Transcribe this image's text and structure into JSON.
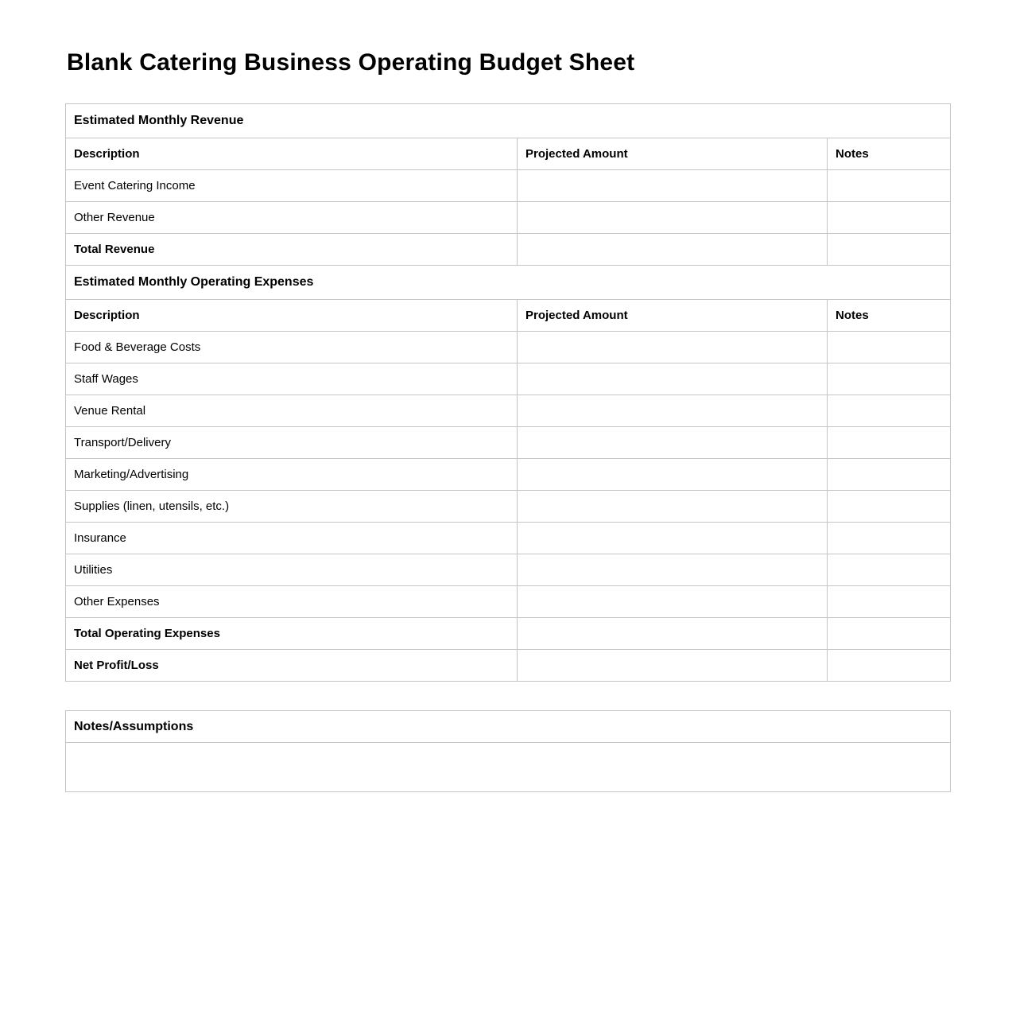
{
  "page": {
    "title": "Blank Catering Business Operating Budget Sheet"
  },
  "budget_table": {
    "sections": [
      {
        "header": "Estimated Monthly Revenue",
        "columns": [
          "Description",
          "Projected Amount",
          "Notes"
        ],
        "rows": [
          {
            "description": "Event Catering Income",
            "projected_amount": "",
            "notes": "",
            "bold": false
          },
          {
            "description": "Other Revenue",
            "projected_amount": "",
            "notes": "",
            "bold": false
          },
          {
            "description": "Total Revenue",
            "projected_amount": "",
            "notes": "",
            "bold": true
          }
        ]
      },
      {
        "header": "Estimated Monthly Operating Expenses",
        "columns": [
          "Description",
          "Projected Amount",
          "Notes"
        ],
        "rows": [
          {
            "description": "Food & Beverage Costs",
            "projected_amount": "",
            "notes": "",
            "bold": false
          },
          {
            "description": "Staff Wages",
            "projected_amount": "",
            "notes": "",
            "bold": false
          },
          {
            "description": "Venue Rental",
            "projected_amount": "",
            "notes": "",
            "bold": false
          },
          {
            "description": "Transport/Delivery",
            "projected_amount": "",
            "notes": "",
            "bold": false
          },
          {
            "description": "Marketing/Advertising",
            "projected_amount": "",
            "notes": "",
            "bold": false
          },
          {
            "description": "Supplies (linen, utensils, etc.)",
            "projected_amount": "",
            "notes": "",
            "bold": false
          },
          {
            "description": "Insurance",
            "projected_amount": "",
            "notes": "",
            "bold": false
          },
          {
            "description": "Utilities",
            "projected_amount": "",
            "notes": "",
            "bold": false
          },
          {
            "description": "Other Expenses",
            "projected_amount": "",
            "notes": "",
            "bold": false
          },
          {
            "description": "Total Operating Expenses",
            "projected_amount": "",
            "notes": "",
            "bold": true
          },
          {
            "description": "Net Profit/Loss",
            "projected_amount": "",
            "notes": "",
            "bold": true
          }
        ]
      }
    ]
  },
  "notes_table": {
    "header": "Notes/Assumptions",
    "content": ""
  },
  "colors": {
    "border": "#c4c4c4",
    "text": "#000000",
    "background": "#ffffff"
  }
}
